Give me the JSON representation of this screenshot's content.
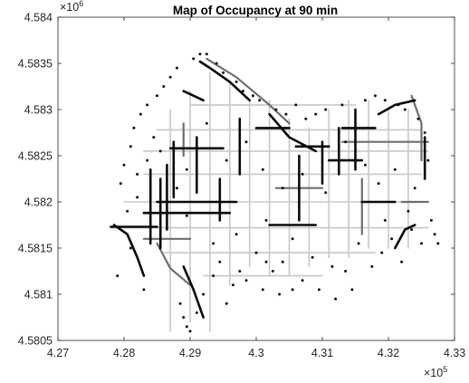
{
  "figure": {
    "background": "#ffffff",
    "axes_color": "#262626"
  },
  "chart_data": {
    "type": "scatter",
    "title": "Map of Occupancy at 90 min",
    "xlabel": "",
    "ylabel": "",
    "xlim": [
      427000,
      433000
    ],
    "ylim": [
      4580500,
      4584000
    ],
    "x_ticks": [
      427000,
      428000,
      429000,
      430000,
      431000,
      432000,
      433000
    ],
    "x_tick_labels": [
      "4.27",
      "4.28",
      "4.29",
      "4.3",
      "4.31",
      "4.32",
      "4.33"
    ],
    "y_ticks": [
      4580500,
      4581000,
      4581500,
      4582000,
      4582500,
      4583000,
      4583500,
      4584000
    ],
    "y_tick_labels": [
      "4.5805",
      "4.581",
      "4.5815",
      "4.582",
      "4.5825",
      "4.583",
      "4.5835",
      "4.584"
    ],
    "x_exponent": {
      "base": "×10",
      "power": "5"
    },
    "y_exponent": {
      "base": "×10",
      "power": "6"
    },
    "grid": false,
    "box": true,
    "series": [
      {
        "style": "line",
        "color": "#c8c8c8",
        "segments": [
          [
            [
              427800,
              4581720
            ],
            [
              432600,
              4581720
            ]
          ],
          [
            [
              428000,
              4582000
            ],
            [
              432600,
              4582000
            ]
          ],
          [
            [
              428300,
              4582300
            ],
            [
              432500,
              4582300
            ]
          ],
          [
            [
              428300,
              4582550
            ],
            [
              432600,
              4582550
            ]
          ],
          [
            [
              428500,
              4582780
            ],
            [
              432500,
              4582780
            ]
          ],
          [
            [
              429000,
              4583050
            ],
            [
              431500,
              4583050
            ]
          ],
          [
            [
              428600,
              4581450
            ],
            [
              431800,
              4581450
            ]
          ],
          [
            [
              429200,
              4581200
            ],
            [
              431000,
              4581200
            ]
          ],
          [
            [
              428700,
              4580600
            ],
            [
              428700,
              4583000
            ]
          ],
          [
            [
              429000,
              4580700
            ],
            [
              429000,
              4583200
            ]
          ],
          [
            [
              429300,
              4580600
            ],
            [
              429300,
              4583400
            ]
          ],
          [
            [
              429600,
              4581100
            ],
            [
              429600,
              4583300
            ]
          ],
          [
            [
              429900,
              4581300
            ],
            [
              429900,
              4583100
            ]
          ],
          [
            [
              430200,
              4581200
            ],
            [
              430200,
              4583100
            ]
          ],
          [
            [
              430500,
              4581200
            ],
            [
              430500,
              4582900
            ]
          ],
          [
            [
              430800,
              4581300
            ],
            [
              430800,
              4582800
            ]
          ],
          [
            [
              431100,
              4581400
            ],
            [
              431100,
              4583000
            ]
          ],
          [
            [
              431400,
              4581400
            ],
            [
              431400,
              4583100
            ]
          ],
          [
            [
              431700,
              4581500
            ],
            [
              431700,
              4583100
            ]
          ],
          [
            [
              432000,
              4581500
            ],
            [
              432000,
              4583000
            ]
          ],
          [
            [
              432300,
              4581500
            ],
            [
              432300,
              4583000
            ]
          ]
        ]
      },
      {
        "style": "line",
        "color": "#6e6e6e",
        "segments": [
          [
            [
              428300,
              4581600
            ],
            [
              429000,
              4581600
            ]
          ],
          [
            [
              430300,
              4582150
            ],
            [
              431000,
              4582150
            ]
          ],
          [
            [
              431300,
              4582650
            ],
            [
              432600,
              4582650
            ]
          ],
          [
            [
              428900,
              4582500
            ],
            [
              428900,
              4582850
            ]
          ],
          [
            [
              431600,
              4581650
            ],
            [
              431600,
              4582250
            ]
          ],
          [
            [
              432200,
              4582000
            ],
            [
              432600,
              4582000
            ]
          ],
          [
            [
              428500,
              4581550
            ],
            [
              428700,
              4581280
            ],
            [
              429000,
              4581100
            ]
          ],
          [
            [
              429250,
              4583550
            ],
            [
              429700,
              4583350
            ],
            [
              430200,
              4583050
            ],
            [
              430500,
              4582850
            ]
          ],
          [
            [
              432350,
              4583150
            ],
            [
              432500,
              4582850
            ],
            [
              432500,
              4582450
            ]
          ]
        ]
      },
      {
        "style": "line",
        "color": "#0a0a0a",
        "segments": [
          [
            [
              427800,
              4581730
            ],
            [
              428500,
              4581730
            ]
          ],
          [
            [
              428300,
              4581880
            ],
            [
              429600,
              4581880
            ]
          ],
          [
            [
              428500,
              4582000
            ],
            [
              429700,
              4582000
            ]
          ],
          [
            [
              428700,
              4582580
            ],
            [
              429500,
              4582580
            ]
          ],
          [
            [
              430600,
              4582600
            ],
            [
              431100,
              4582600
            ]
          ],
          [
            [
              431100,
              4582450
            ],
            [
              431600,
              4582450
            ]
          ],
          [
            [
              431300,
              4582800
            ],
            [
              431800,
              4582800
            ]
          ],
          [
            [
              430000,
              4582800
            ],
            [
              430500,
              4582800
            ]
          ],
          [
            [
              431600,
              4582000
            ],
            [
              432100,
              4582000
            ]
          ],
          [
            [
              430200,
              4581750
            ],
            [
              430900,
              4581750
            ]
          ],
          [
            [
              428400,
              4581550
            ],
            [
              428400,
              4582350
            ]
          ],
          [
            [
              428550,
              4581500
            ],
            [
              428550,
              4582250
            ]
          ],
          [
            [
              428650,
              4581700
            ],
            [
              428650,
              4582400
            ]
          ],
          [
            [
              428750,
              4582050
            ],
            [
              428750,
              4582650
            ]
          ],
          [
            [
              429100,
              4582100
            ],
            [
              429100,
              4582700
            ]
          ],
          [
            [
              429450,
              4581800
            ],
            [
              429450,
              4582250
            ]
          ],
          [
            [
              429750,
              4582300
            ],
            [
              429750,
              4582900
            ]
          ],
          [
            [
              430650,
              4581800
            ],
            [
              430650,
              4582500
            ]
          ],
          [
            [
              431000,
              4582200
            ],
            [
              431000,
              4582650
            ]
          ],
          [
            [
              431250,
              4582300
            ],
            [
              431250,
              4582800
            ]
          ],
          [
            [
              431500,
              4582350
            ],
            [
              431500,
              4583000
            ]
          ],
          [
            [
              432550,
              4582250
            ],
            [
              432550,
              4582700
            ]
          ],
          [
            [
              429150,
              4583520
            ],
            [
              429300,
              4583450
            ],
            [
              429600,
              4583300
            ],
            [
              429900,
              4583100
            ]
          ],
          [
            [
              430200,
              4582950
            ],
            [
              430500,
              4582700
            ],
            [
              430900,
              4582550
            ]
          ],
          [
            [
              431850,
              4582950
            ],
            [
              432100,
              4583050
            ],
            [
              432400,
              4583100
            ]
          ],
          [
            [
              427850,
              4581750
            ],
            [
              428050,
              4581650
            ],
            [
              428200,
              4581400
            ],
            [
              428300,
              4581200
            ]
          ],
          [
            [
              428900,
              4581300
            ],
            [
              429050,
              4581050
            ],
            [
              429200,
              4580750
            ]
          ],
          [
            [
              432100,
              4581500
            ],
            [
              432250,
              4581700
            ],
            [
              432400,
              4581750
            ]
          ],
          [
            [
              428900,
              4583200
            ],
            [
              429050,
              4583150
            ],
            [
              429200,
              4583100
            ]
          ]
        ]
      },
      {
        "style": "dots",
        "color": "#111111",
        "points": [
          [
            427900,
            4581200
          ],
          [
            427950,
            4582200
          ],
          [
            428000,
            4582400
          ],
          [
            428050,
            4581900
          ],
          [
            428100,
            4582600
          ],
          [
            428150,
            4582800
          ],
          [
            428200,
            4582050
          ],
          [
            428250,
            4582950
          ],
          [
            428300,
            4581050
          ],
          [
            428350,
            4583050
          ],
          [
            428450,
            4582700
          ],
          [
            428500,
            4583150
          ],
          [
            428600,
            4583250
          ],
          [
            428700,
            4583350
          ],
          [
            428800,
            4583450
          ],
          [
            428850,
            4580900
          ],
          [
            428900,
            4580750
          ],
          [
            428950,
            4580650
          ],
          [
            429000,
            4580600
          ],
          [
            429050,
            4583550
          ],
          [
            429100,
            4580800
          ],
          [
            429150,
            4583600
          ],
          [
            429200,
            4581000
          ],
          [
            429250,
            4583600
          ],
          [
            429350,
            4581200
          ],
          [
            429400,
            4583500
          ],
          [
            429450,
            4581350
          ],
          [
            429500,
            4583400
          ],
          [
            429550,
            4580900
          ],
          [
            429650,
            4581100
          ],
          [
            429700,
            4583300
          ],
          [
            429750,
            4581250
          ],
          [
            429800,
            4583200
          ],
          [
            429850,
            4581150
          ],
          [
            429950,
            4583150
          ],
          [
            430000,
            4581450
          ],
          [
            430050,
            4583100
          ],
          [
            430100,
            4581050
          ],
          [
            430150,
            4581350
          ],
          [
            430250,
            4581250
          ],
          [
            430300,
            4583000
          ],
          [
            430350,
            4581000
          ],
          [
            430400,
            4581350
          ],
          [
            430450,
            4582950
          ],
          [
            430550,
            4581050
          ],
          [
            430600,
            4583050
          ],
          [
            430700,
            4581150
          ],
          [
            430750,
            4582900
          ],
          [
            430850,
            4581400
          ],
          [
            430900,
            4582950
          ],
          [
            430950,
            4581050
          ],
          [
            431050,
            4583000
          ],
          [
            431150,
            4581300
          ],
          [
            431200,
            4580950
          ],
          [
            431300,
            4583050
          ],
          [
            431350,
            4581250
          ],
          [
            431450,
            4581050
          ],
          [
            431550,
            4581550
          ],
          [
            431650,
            4583100
          ],
          [
            431750,
            4581300
          ],
          [
            431800,
            4583150
          ],
          [
            431900,
            4581450
          ],
          [
            431950,
            4583100
          ],
          [
            432050,
            4581600
          ],
          [
            432150,
            4583050
          ],
          [
            432200,
            4581350
          ],
          [
            432250,
            4583000
          ],
          [
            432350,
            4581700
          ],
          [
            432450,
            4582900
          ],
          [
            432500,
            4581550
          ],
          [
            432550,
            4582750
          ],
          [
            432600,
            4582450
          ],
          [
            432650,
            4581800
          ],
          [
            432700,
            4581650
          ],
          [
            432750,
            4581550
          ],
          [
            428100,
            4581500
          ],
          [
            428200,
            4582300
          ],
          [
            428350,
            4582450
          ],
          [
            428550,
            4582550
          ],
          [
            428800,
            4582150
          ],
          [
            428950,
            4582350
          ],
          [
            429250,
            4582850
          ],
          [
            429550,
            4582450
          ],
          [
            429850,
            4582650
          ],
          [
            430100,
            4582350
          ],
          [
            430400,
            4582150
          ],
          [
            430700,
            4582300
          ],
          [
            431050,
            4582100
          ],
          [
            431350,
            4582650
          ],
          [
            431650,
            4582400
          ],
          [
            431850,
            4582200
          ],
          [
            432100,
            4582350
          ],
          [
            432400,
            4582150
          ],
          [
            432300,
            4581900
          ],
          [
            431950,
            4581800
          ],
          [
            430550,
            4581600
          ],
          [
            430150,
            4581800
          ],
          [
            429700,
            4581650
          ],
          [
            429350,
            4581550
          ],
          [
            428950,
            4581850
          ]
        ]
      }
    ]
  }
}
